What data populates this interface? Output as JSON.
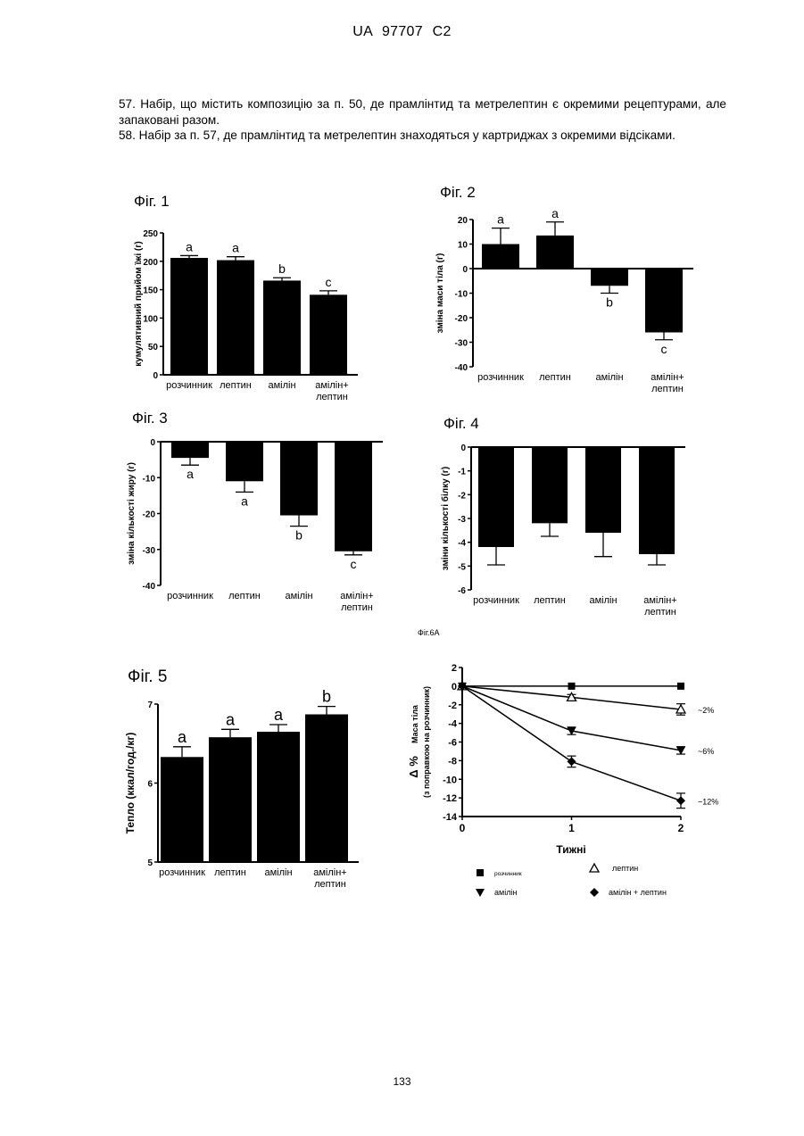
{
  "header": "UA   97707   C2",
  "claims": [
    "57. Набір, що містить композицію за п. 50, де прамлінтид та метрелептин є окремими рецептурами, але запаковані разом.",
    "58. Набір за п. 57, де прамлінтид та метрелептин знаходяться у картриджах з окремими відсіками."
  ],
  "page_number": "133",
  "figure_caption_6a": "Фіг.6А",
  "chart_data": [
    {
      "type": "bar",
      "title": "Фіг. 1",
      "ylabel": "кумулятивний прийом їжі (г)",
      "ylim": [
        0,
        250
      ],
      "yticks": [
        "0",
        "50",
        "100",
        "150",
        "200",
        "250"
      ],
      "categories": [
        "розчинник",
        "лептин",
        "амілін",
        "амілін+ лептин"
      ],
      "values": [
        206,
        202,
        166,
        141
      ],
      "errors": [
        4,
        6,
        5,
        7
      ],
      "letters": [
        "a",
        "a",
        "b",
        "c"
      ]
    },
    {
      "type": "bar",
      "title": "Фіг. 2",
      "ylabel": "зміна маси тіла (г)",
      "ylim": [
        -40,
        20
      ],
      "yticks": [
        "20",
        "10",
        "0",
        "-10",
        "-20",
        "-30",
        "-40"
      ],
      "categories": [
        "розчинник",
        "лептин",
        "амілін",
        "амілін+ лептин"
      ],
      "values": [
        10,
        13.5,
        -7,
        -26
      ],
      "errors": [
        6.5,
        5.5,
        3,
        3
      ],
      "letters": [
        "a",
        "a",
        "b",
        "c"
      ]
    },
    {
      "type": "bar",
      "title": "Фіг. 3",
      "ylabel": "зміна кількості жиру (г)",
      "ylim": [
        -40,
        0
      ],
      "yticks": [
        "0",
        "-10",
        "-20",
        "-30",
        "-40"
      ],
      "categories": [
        "розчинник",
        "лептин",
        "амілін",
        "амілін+ лептин"
      ],
      "values": [
        -4.5,
        -11,
        -20.5,
        -30.5
      ],
      "errors": [
        2,
        3,
        3,
        1
      ],
      "letters": [
        "a",
        "a",
        "b",
        "c"
      ]
    },
    {
      "type": "bar",
      "title": "Фіг. 4",
      "ylabel": "зміни кількості білку (г)",
      "ylim": [
        -6,
        0
      ],
      "yticks": [
        "0",
        "-1",
        "-2",
        "-3",
        "-4",
        "-5",
        "-6"
      ],
      "categories": [
        "розчинник",
        "лептин",
        "амілін",
        "амілін+ лептин"
      ],
      "values": [
        -4.2,
        -3.2,
        -3.6,
        -4.5
      ],
      "errors": [
        0.75,
        0.55,
        1.0,
        0.45
      ],
      "letters": [
        "",
        "",
        "",
        ""
      ]
    },
    {
      "type": "bar",
      "title": "Фіг. 5",
      "ylabel": "Тепло (ккал/год./кг)",
      "ylim": [
        5,
        7
      ],
      "yticks": [
        "7",
        "6",
        "5"
      ],
      "categories": [
        "розчинник",
        "лептин",
        "амілін",
        "амілін+ лептин"
      ],
      "values": [
        6.33,
        6.58,
        6.65,
        6.87
      ],
      "errors": [
        0.13,
        0.1,
        0.09,
        0.1
      ],
      "letters": [
        "a",
        "a",
        "a",
        "b"
      ]
    },
    {
      "type": "line",
      "ylabel_main": "Δ %",
      "ylabel_sub1": "Маса тіла",
      "ylabel_sub2": "(з поправкою на розчинник)",
      "xlabel": "Тижні",
      "x": [
        0,
        1,
        2
      ],
      "xticks": [
        "0",
        "1",
        "2"
      ],
      "ylim": [
        -14,
        2
      ],
      "yticks": [
        "2",
        "0",
        "-2",
        "-4",
        "-6",
        "-8",
        "-10",
        "-12",
        "-14"
      ],
      "series": [
        {
          "name": "розчинник",
          "marker": "square",
          "values": [
            0,
            0,
            0
          ],
          "errors": [
            0,
            0,
            0
          ]
        },
        {
          "name": "лептин",
          "marker": "triangle-open",
          "values": [
            0,
            -1.2,
            -2.5
          ],
          "errors": [
            0,
            0.3,
            0.6
          ]
        },
        {
          "name": "амілін",
          "marker": "triangle-down",
          "values": [
            0,
            -4.8,
            -6.9
          ],
          "errors": [
            0,
            0.4,
            0.4
          ]
        },
        {
          "name": "амілін + лептин",
          "marker": "diamond",
          "values": [
            0,
            -8.1,
            -12.3
          ],
          "errors": [
            0,
            0.6,
            0.8
          ]
        }
      ],
      "annotations": [
        "~2%",
        "~6%",
        "~12%"
      ]
    }
  ]
}
